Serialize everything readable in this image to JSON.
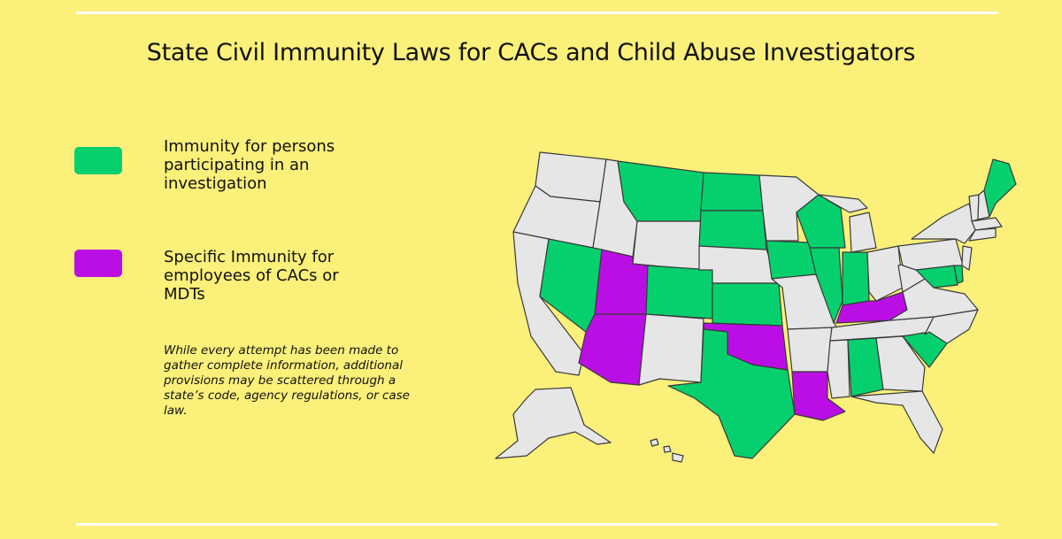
{
  "title": "State Civil Immunity Laws for CACs and Child Abuse Investigators",
  "legend": {
    "green_label": "Immunity for persons participating in an investigation",
    "purple_label": "Specific Immunity for employees of CACs or MDTs"
  },
  "note": "While every attempt has been made to gather complete information, additional provisions may be scattered through a state’s code, agency regulations, or case law.",
  "colors": {
    "background": "#faf07a",
    "green": "#05d06d",
    "purple": "#bb0ee5",
    "none": "#e6e6e6"
  },
  "states": {
    "green": [
      "Nevada",
      "Montana",
      "North Dakota",
      "South Dakota",
      "Colorado",
      "Kansas",
      "Texas",
      "Iowa",
      "Wisconsin",
      "Illinois",
      "Indiana",
      "Alabama",
      "South Carolina",
      "Maine",
      "Maryland",
      "Delaware"
    ],
    "purple": [
      "Utah",
      "Arizona",
      "Oklahoma",
      "Louisiana",
      "Kentucky"
    ]
  }
}
